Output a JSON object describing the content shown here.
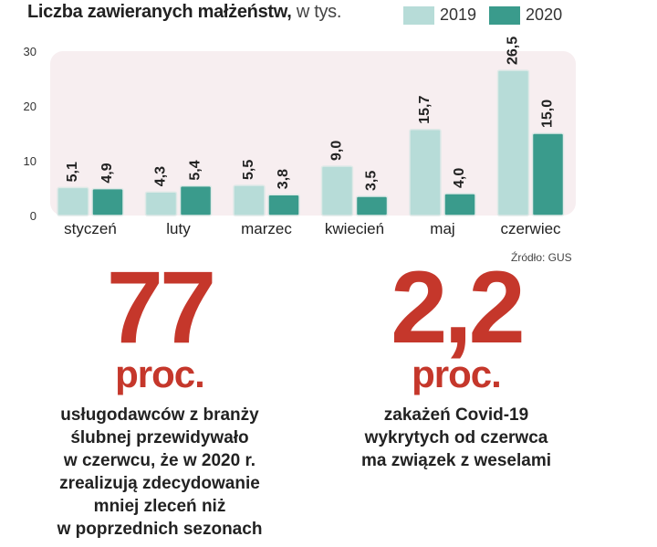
{
  "title": {
    "main": "Liczba zawieranych małżeństw,",
    "unit": " w tys."
  },
  "colors": {
    "y2019": "#b7dcd8",
    "y2020": "#3a9b8c",
    "accent": "#c5372b",
    "plot_bg": "#f7eef0"
  },
  "chart_data": {
    "type": "bar",
    "title": "Liczba zawieranych małżeństw, w tys.",
    "categories": [
      "styczeń",
      "luty",
      "marzec",
      "kwiecień",
      "maj",
      "czerwiec"
    ],
    "series": [
      {
        "name": "2019",
        "values": [
          5.1,
          4.3,
          5.5,
          9.0,
          15.7,
          26.5
        ],
        "labels": [
          "5,1",
          "4,3",
          "5,5",
          "9,0",
          "15,7",
          "26,5"
        ]
      },
      {
        "name": "2020",
        "values": [
          4.9,
          5.4,
          3.8,
          3.5,
          4.0,
          15.0
        ],
        "labels": [
          "4,9",
          "5,4",
          "3,8",
          "3,5",
          "4,0",
          "15,0"
        ]
      }
    ],
    "yticks": [
      "0",
      "10",
      "20",
      "30"
    ],
    "ylim": [
      0,
      30
    ],
    "legend": "top-right",
    "grid": false
  },
  "source": "Źródło: GUS",
  "stat1": {
    "value": "77",
    "unit": "proc.",
    "lines": [
      "usługodawców z branży",
      "ślubnej przewidywało",
      "w czerwcu, że w 2020 r.",
      "zrealizują zdecydowanie",
      "mniej zleceń niż",
      "w poprzednich sezonach"
    ]
  },
  "stat2": {
    "value": "2,2",
    "unit": "proc.",
    "lines": [
      "zakażeń Covid-19",
      "wykrytych od czerwca",
      "ma związek z weselami"
    ]
  }
}
